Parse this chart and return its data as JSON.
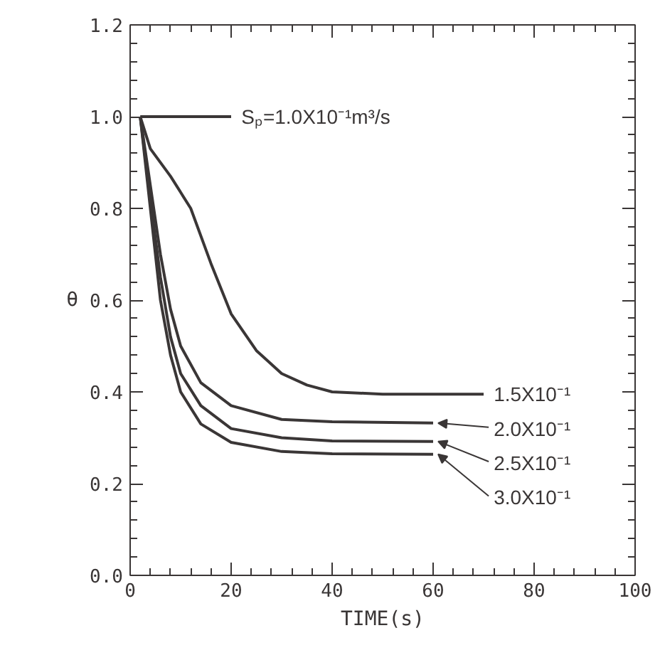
{
  "chart_data": {
    "type": "line",
    "xlabel": "TIME(s)",
    "ylabel": "θ",
    "xlim": [
      0,
      100
    ],
    "ylim": [
      0,
      1.2
    ],
    "xticks": [
      0,
      20,
      40,
      60,
      80,
      100
    ],
    "yticks": [
      {
        "value": 0,
        "label": "0.0"
      },
      {
        "value": 0.2,
        "label": "0.2"
      },
      {
        "value": 0.4,
        "label": "0.4"
      },
      {
        "value": 0.6,
        "label": "0.6"
      },
      {
        "value": 0.8,
        "label": "0.8"
      },
      {
        "value": 1.0,
        "label": "1.0"
      },
      {
        "value": 1.2,
        "label": "1.2"
      }
    ],
    "grid": false,
    "legend": "right",
    "marker": "none",
    "line_style": "solid",
    "series": [
      {
        "name": "Sₚ=1.0X10⁻¹m³/s",
        "color": "#3a3636",
        "x": [
          2,
          20
        ],
        "values": [
          1.0,
          1.0
        ]
      },
      {
        "name": "1.5X10⁻¹",
        "color": "#3a3636",
        "x": [
          2,
          4,
          8,
          12,
          16,
          20,
          25,
          30,
          35,
          40,
          50,
          70
        ],
        "values": [
          1.0,
          0.93,
          0.87,
          0.8,
          0.68,
          0.57,
          0.49,
          0.44,
          0.415,
          0.4,
          0.395,
          0.395
        ]
      },
      {
        "name": "2.0X10⁻¹",
        "color": "#3a3636",
        "x": [
          2,
          4,
          6,
          8,
          10,
          14,
          20,
          30,
          40,
          60
        ],
        "values": [
          1.0,
          0.85,
          0.7,
          0.58,
          0.5,
          0.42,
          0.37,
          0.34,
          0.335,
          0.332
        ]
      },
      {
        "name": "2.5X10⁻¹",
        "color": "#3a3636",
        "x": [
          2,
          4,
          6,
          8,
          10,
          14,
          20,
          30,
          40,
          60
        ],
        "values": [
          1.0,
          0.82,
          0.65,
          0.52,
          0.44,
          0.37,
          0.32,
          0.3,
          0.293,
          0.292
        ]
      },
      {
        "name": "3.0X10⁻¹",
        "color": "#3a3636",
        "x": [
          2,
          4,
          6,
          8,
          10,
          14,
          20,
          30,
          40,
          60
        ],
        "values": [
          1.0,
          0.8,
          0.6,
          0.48,
          0.4,
          0.33,
          0.29,
          0.27,
          0.265,
          0.264
        ]
      }
    ]
  }
}
